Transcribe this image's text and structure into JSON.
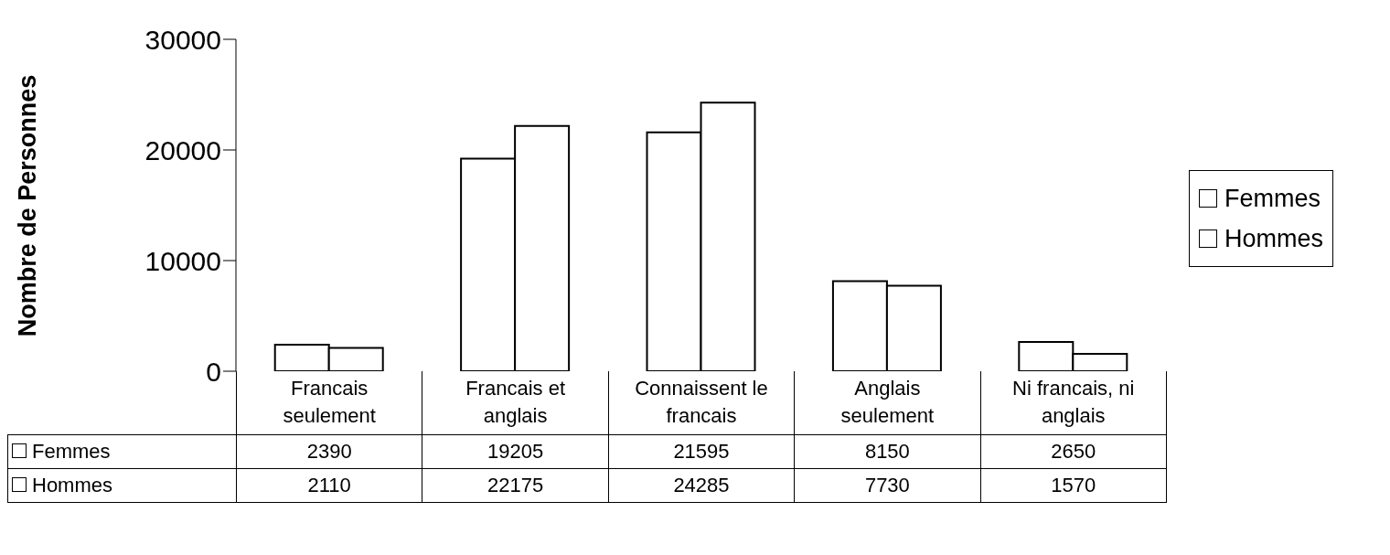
{
  "chart_data": {
    "type": "bar",
    "ylabel": "Nombre de Personnes",
    "categories": [
      "Francais seulement",
      "Francais et anglais",
      "Connaissent le francais",
      "Anglais seulement",
      "Ni francais, ni anglais"
    ],
    "series": [
      {
        "name": "Femmes",
        "color": "#ffffff",
        "values": [
          2390,
          19205,
          21595,
          8150,
          2650
        ]
      },
      {
        "name": "Hommes",
        "color": "#ffffff",
        "values": [
          2110,
          22175,
          24285,
          7730,
          1570
        ]
      }
    ],
    "ylim": [
      0,
      30000
    ],
    "yticks": [
      0,
      10000,
      20000,
      30000
    ],
    "grid": false,
    "legend": "right",
    "data_labels": true
  }
}
